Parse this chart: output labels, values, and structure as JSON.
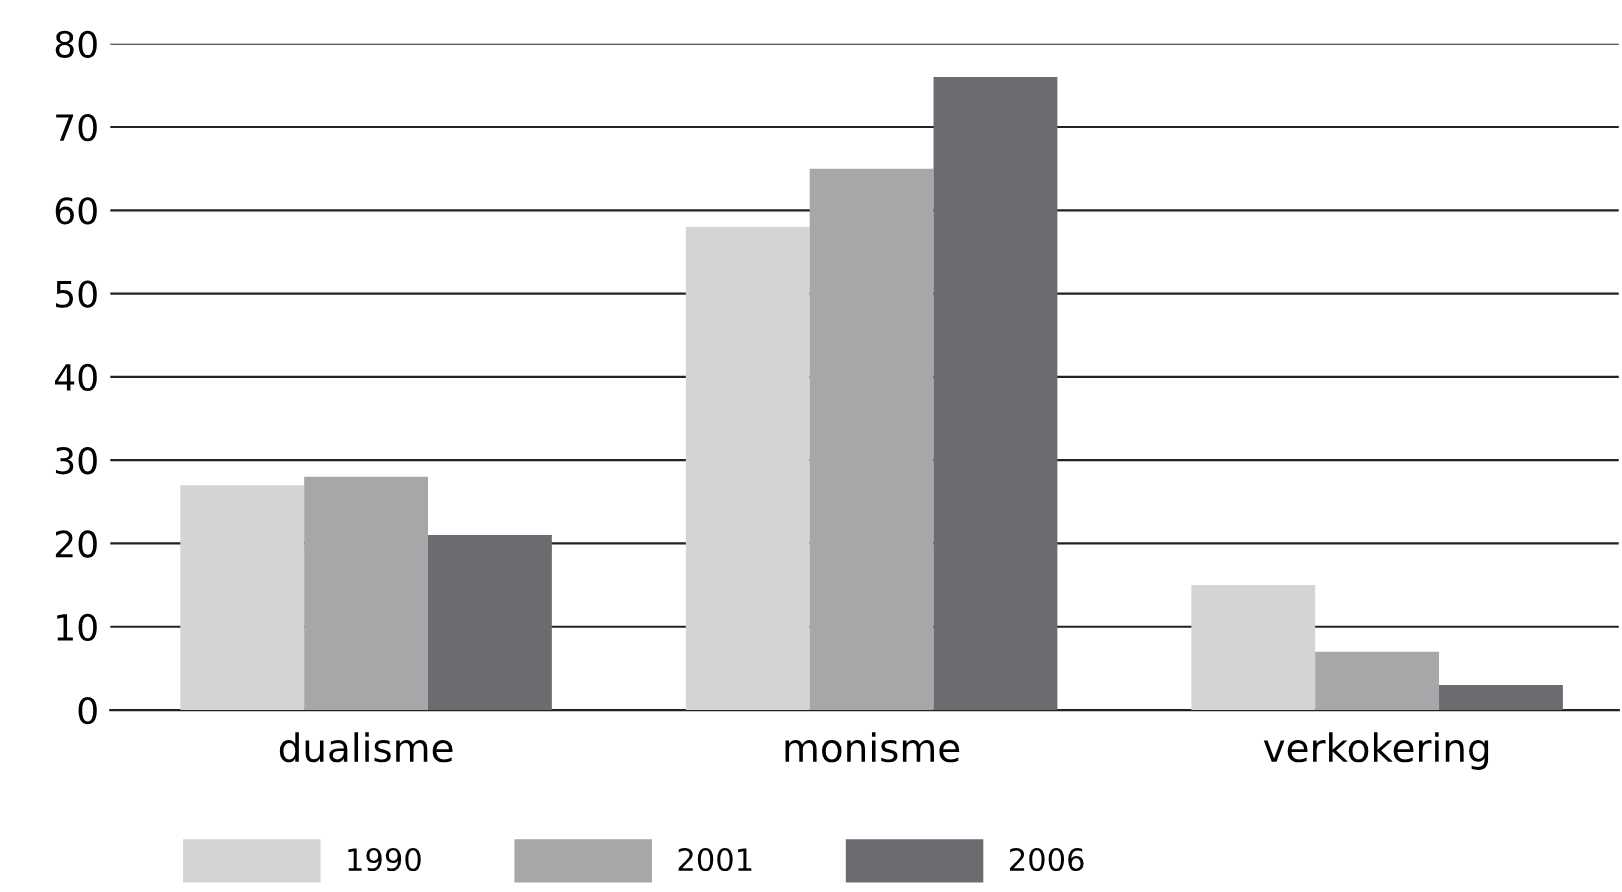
{
  "chart_data": {
    "type": "bar",
    "categories": [
      "dualisme",
      "monisme",
      "verkokering"
    ],
    "series": [
      {
        "name": "1990",
        "color": "#d4d4d6",
        "values": [
          27,
          58,
          15
        ]
      },
      {
        "name": "2001",
        "color": "#a7a7aa",
        "values": [
          28,
          65,
          7
        ]
      },
      {
        "name": "2006",
        "color": "#6c6c70",
        "values": [
          21,
          76,
          3
        ]
      }
    ],
    "ylim": [
      0,
      80
    ],
    "yticks": [
      0,
      10,
      20,
      30,
      40,
      50,
      60,
      70,
      80
    ],
    "grid": "y",
    "legend": "bottom"
  }
}
